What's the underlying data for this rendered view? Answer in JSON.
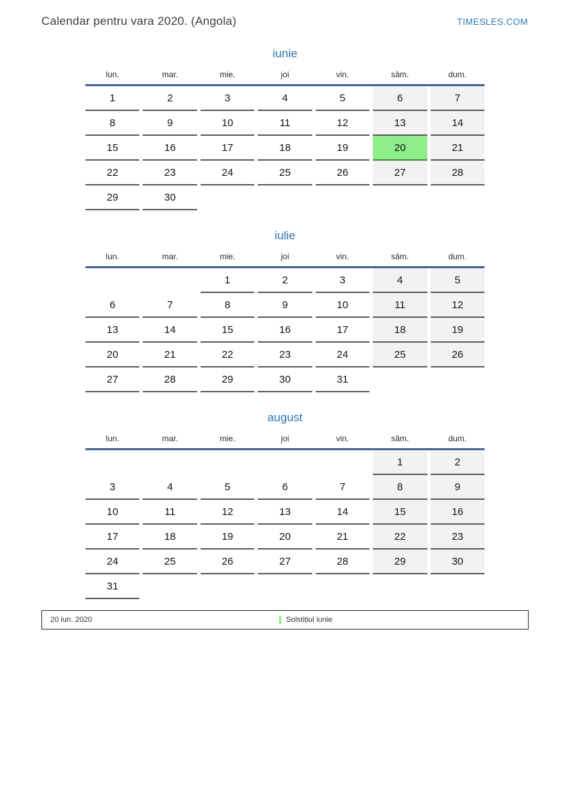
{
  "page": {
    "title": "Calendar pentru vara 2020. (Angola)",
    "brand": "TIMESLES.COM"
  },
  "day_headers": [
    "lun.",
    "mar.",
    "mie.",
    "joi",
    "vin.",
    "sâm.",
    "dum."
  ],
  "months": [
    {
      "name": "iunie",
      "weeks": [
        [
          1,
          2,
          3,
          4,
          5,
          6,
          7
        ],
        [
          8,
          9,
          10,
          11,
          12,
          13,
          14
        ],
        [
          15,
          16,
          17,
          18,
          19,
          20,
          21
        ],
        [
          22,
          23,
          24,
          25,
          26,
          27,
          28
        ],
        [
          29,
          30,
          null,
          null,
          null,
          null,
          null
        ]
      ],
      "highlighted_days": [
        20
      ]
    },
    {
      "name": "iulie",
      "weeks": [
        [
          null,
          null,
          1,
          2,
          3,
          4,
          5
        ],
        [
          6,
          7,
          8,
          9,
          10,
          11,
          12
        ],
        [
          13,
          14,
          15,
          16,
          17,
          18,
          19
        ],
        [
          20,
          21,
          22,
          23,
          24,
          25,
          26
        ],
        [
          27,
          28,
          29,
          30,
          31,
          null,
          null
        ]
      ],
      "highlighted_days": []
    },
    {
      "name": "august",
      "weeks": [
        [
          null,
          null,
          null,
          null,
          null,
          1,
          2
        ],
        [
          3,
          4,
          5,
          6,
          7,
          8,
          9
        ],
        [
          10,
          11,
          12,
          13,
          14,
          15,
          16
        ],
        [
          17,
          18,
          19,
          20,
          21,
          22,
          23
        ],
        [
          24,
          25,
          26,
          27,
          28,
          29,
          30
        ],
        [
          31,
          null,
          null,
          null,
          null,
          null,
          null
        ]
      ],
      "highlighted_days": []
    }
  ],
  "legend": {
    "date": "20 iun. 2020",
    "event": "Solstițiul iunie"
  },
  "colors": {
    "accent_blue": "#2e75b5",
    "header_rule_blue": "#466593",
    "weekend_bg": "#f2f2f2",
    "highlight_bg": "#8dee8a",
    "highlight_border": "#4e7d43",
    "cell_border": "#5a5a5a"
  }
}
